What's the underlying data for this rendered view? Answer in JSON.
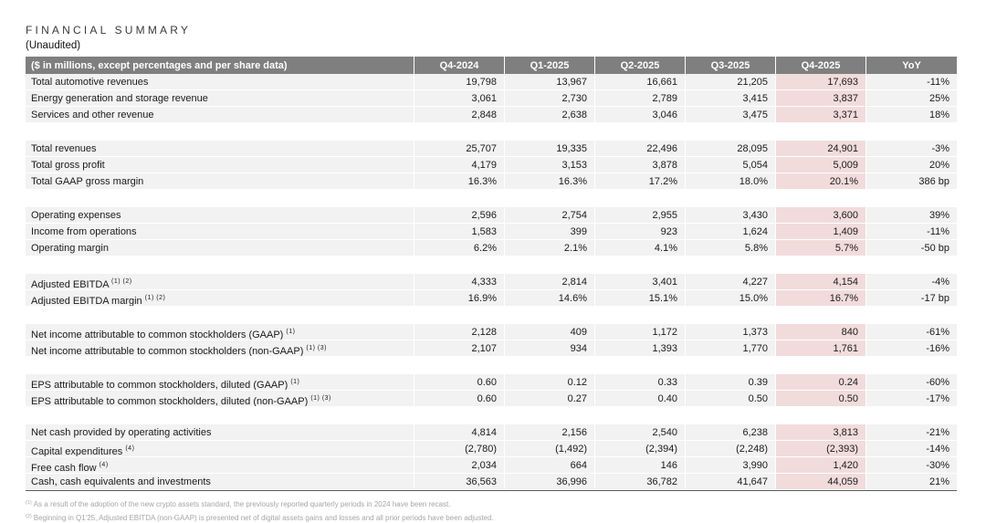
{
  "title": "FINANCIAL SUMMARY",
  "subtitle": "(Unaudited)",
  "table": {
    "header": {
      "label": "($ in millions, except percentages and per share data)",
      "columns": [
        "Q4-2024",
        "Q1-2025",
        "Q2-2025",
        "Q3-2025",
        "Q4-2025",
        "YoY"
      ]
    },
    "highlight_column": "Q4-2025",
    "colors": {
      "header_bg": "#7f7f7f",
      "header_text": "#ffffff",
      "row_bg": "#f2f2f2",
      "highlight_bg": "#f1dcdb",
      "table_bottom_border": "#595959",
      "footnote_text": "#a6a6a6"
    },
    "sections": [
      {
        "rows": [
          {
            "label": "Total automotive revenues",
            "sup": "",
            "values": [
              "19,798",
              "13,967",
              "16,661",
              "21,205",
              "17,693",
              "-11%"
            ]
          },
          {
            "label": "Energy generation and storage revenue",
            "sup": "",
            "values": [
              "3,061",
              "2,730",
              "2,789",
              "3,415",
              "3,837",
              "25%"
            ]
          },
          {
            "label": "Services and other revenue",
            "sup": "",
            "values": [
              "2,848",
              "2,638",
              "3,046",
              "3,475",
              "3,371",
              "18%"
            ]
          }
        ]
      },
      {
        "rows": [
          {
            "label": "Total revenues",
            "sup": "",
            "values": [
              "25,707",
              "19,335",
              "22,496",
              "28,095",
              "24,901",
              "-3%"
            ]
          },
          {
            "label": "Total gross profit",
            "sup": "",
            "values": [
              "4,179",
              "3,153",
              "3,878",
              "5,054",
              "5,009",
              "20%"
            ]
          },
          {
            "label": "Total GAAP gross margin",
            "sup": "",
            "values": [
              "16.3%",
              "16.3%",
              "17.2%",
              "18.0%",
              "20.1%",
              "386 bp"
            ]
          }
        ]
      },
      {
        "rows": [
          {
            "label": "Operating expenses",
            "sup": "",
            "values": [
              "2,596",
              "2,754",
              "2,955",
              "3,430",
              "3,600",
              "39%"
            ]
          },
          {
            "label": "Income from operations",
            "sup": "",
            "values": [
              "1,583",
              "399",
              "923",
              "1,624",
              "1,409",
              "-11%"
            ]
          },
          {
            "label": "Operating margin",
            "sup": "",
            "values": [
              "6.2%",
              "2.1%",
              "4.1%",
              "5.8%",
              "5.7%",
              "-50 bp"
            ]
          }
        ]
      },
      {
        "rows": [
          {
            "label": "Adjusted EBITDA",
            "sup": "(1) (2)",
            "values": [
              "4,333",
              "2,814",
              "3,401",
              "4,227",
              "4,154",
              "-4%"
            ]
          },
          {
            "label": "Adjusted EBITDA margin",
            "sup": "(1) (2)",
            "values": [
              "16.9%",
              "14.6%",
              "15.1%",
              "15.0%",
              "16.7%",
              "-17 bp"
            ]
          }
        ]
      },
      {
        "rows": [
          {
            "label": "Net income attributable to common stockholders (GAAP)",
            "sup": "(1)",
            "values": [
              "2,128",
              "409",
              "1,172",
              "1,373",
              "840",
              "-61%"
            ]
          },
          {
            "label": "Net income attributable to common stockholders (non-GAAP)",
            "sup": "(1) (3)",
            "values": [
              "2,107",
              "934",
              "1,393",
              "1,770",
              "1,761",
              "-16%"
            ]
          }
        ]
      },
      {
        "rows": [
          {
            "label": "EPS attributable to common stockholders, diluted (GAAP)",
            "sup": "(1)",
            "values": [
              "0.60",
              "0.12",
              "0.33",
              "0.39",
              "0.24",
              "-60%"
            ]
          },
          {
            "label": "EPS attributable to common stockholders, diluted (non-GAAP)",
            "sup": "(1) (3)",
            "values": [
              "0.60",
              "0.27",
              "0.40",
              "0.50",
              "0.50",
              "-17%"
            ]
          }
        ]
      },
      {
        "rows": [
          {
            "label": "Net cash provided by operating activities",
            "sup": "",
            "values": [
              "4,814",
              "2,156",
              "2,540",
              "6,238",
              "3,813",
              "-21%"
            ]
          },
          {
            "label": "Capital expenditures",
            "sup": "(4)",
            "values": [
              "(2,780)",
              "(1,492)",
              "(2,394)",
              "(2,248)",
              "(2,393)",
              "-14%"
            ]
          },
          {
            "label": "Free cash flow",
            "sup": "(4)",
            "values": [
              "2,034",
              "664",
              "146",
              "3,990",
              "1,420",
              "-30%"
            ]
          },
          {
            "label": "Cash, cash equivalents and investments",
            "sup": "",
            "values": [
              "36,563",
              "36,996",
              "36,782",
              "41,647",
              "44,059",
              "21%"
            ]
          }
        ]
      }
    ]
  },
  "footnotes": [
    {
      "sup": "(1)",
      "text": "As a result of the adoption of the new crypto assets standard, the previously reported quarterly periods in 2024 have been recast."
    },
    {
      "sup": "(2)",
      "text": "Beginning in Q1'25, Adjusted EBITDA (non-GAAP) is presented net of digital assets gains and losses and all prior periods have been adjusted."
    }
  ]
}
